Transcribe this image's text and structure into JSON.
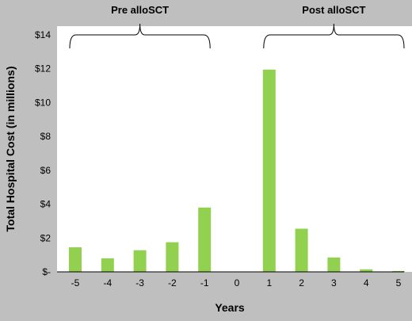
{
  "chart_data": {
    "type": "bar",
    "title": "",
    "xlabel": "Years",
    "ylabel": "Total Hospital Cost (in millions)",
    "categories": [
      "-5",
      "-4",
      "-3",
      "-2",
      "-1",
      "0",
      "1",
      "2",
      "3",
      "4",
      "5"
    ],
    "values": [
      1.45,
      0.8,
      1.28,
      1.75,
      3.8,
      0,
      11.95,
      2.55,
      0.85,
      0.15,
      0.05
    ],
    "ylim": [
      0,
      14
    ],
    "yticks": [
      0,
      2,
      4,
      6,
      8,
      10,
      12,
      14
    ],
    "ytick_labels": [
      "$-",
      "$2",
      "$4",
      "$6",
      "$8",
      "$10",
      "$12",
      "$14"
    ],
    "grid": false,
    "bar_color": "#92d050",
    "plot_background": "#ffffff",
    "page_background": "#bfbfbf",
    "groups": [
      {
        "label": "Pre alloSCT",
        "from": "-5",
        "to": "-1"
      },
      {
        "label": "Post alloSCT",
        "from": "1",
        "to": "5"
      }
    ]
  }
}
